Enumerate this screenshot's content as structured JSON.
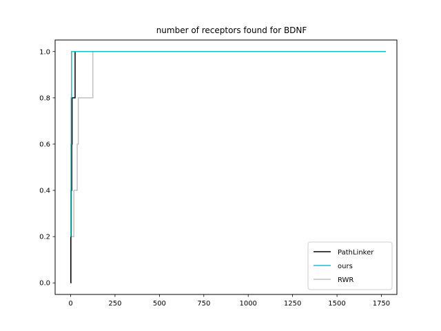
{
  "chart_data": {
    "type": "line",
    "title": "number of receptors found for BDNF",
    "xlabel": "",
    "ylabel": "",
    "xlim": [
      -87.5,
      1837.5
    ],
    "ylim": [
      -0.05,
      1.05
    ],
    "x_ticks": [
      0,
      250,
      500,
      750,
      1000,
      1250,
      1500,
      1750
    ],
    "y_ticks": [
      0.0,
      0.2,
      0.4,
      0.6,
      0.8,
      1.0
    ],
    "x_tick_labels": [
      "0",
      "250",
      "500",
      "750",
      "1000",
      "1250",
      "1500",
      "1750"
    ],
    "y_tick_labels": [
      "0.0",
      "0.2",
      "0.4",
      "0.6",
      "0.8",
      "1.0"
    ],
    "grid": false,
    "legend_position": "lower-right",
    "series": [
      {
        "name": "PathLinker",
        "color": "#000000",
        "x": [
          0,
          1,
          1,
          3,
          3,
          6,
          6,
          8,
          8,
          25,
          25,
          1775
        ],
        "y": [
          0.0,
          0.0,
          0.2,
          0.2,
          0.4,
          0.4,
          0.6,
          0.6,
          0.8,
          0.8,
          1.0,
          1.0
        ]
      },
      {
        "name": "ours",
        "color": "#17becf",
        "x": [
          0,
          1,
          1,
          2,
          2,
          3,
          3,
          4,
          4,
          5,
          5,
          1775
        ],
        "y": [
          0.2,
          0.2,
          0.4,
          0.4,
          0.6,
          0.6,
          0.8,
          0.8,
          0.8,
          0.8,
          1.0,
          1.0
        ]
      },
      {
        "name": "RWR",
        "color": "#c0c0c0",
        "x": [
          0,
          2,
          2,
          18,
          18,
          37,
          37,
          43,
          43,
          125,
          125,
          1775
        ],
        "y": [
          0.0,
          0.0,
          0.2,
          0.2,
          0.4,
          0.4,
          0.6,
          0.6,
          0.8,
          0.8,
          1.0,
          1.0
        ]
      }
    ]
  }
}
